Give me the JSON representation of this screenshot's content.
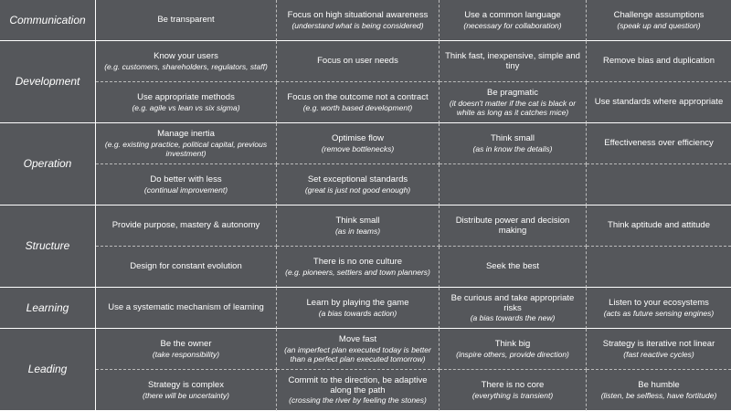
{
  "groups": [
    {
      "label": "Communication",
      "rows": [
        [
          {
            "main": "Be transparent"
          },
          {
            "main": "Focus on high situational awareness",
            "sub": "(understand what is being considered)"
          },
          {
            "main": "Use a common language",
            "sub": "(necessary for collaboration)"
          },
          {
            "main": "Challenge assumptions",
            "sub": "(speak up and question)"
          }
        ]
      ]
    },
    {
      "label": "Development",
      "rows": [
        [
          {
            "main": "Know your users",
            "sub": "(e.g. customers, shareholders, regulators, staff)"
          },
          {
            "main": "Focus on user needs"
          },
          {
            "main": "Think fast, inexpensive, simple and tiny"
          },
          {
            "main": "Remove bias and duplication"
          }
        ],
        [
          {
            "main": "Use appropriate methods",
            "sub": "(e.g. agile vs lean vs six sigma)"
          },
          {
            "main": "Focus on the outcome not a contract",
            "sub": "(e.g. worth based development)"
          },
          {
            "main": "Be pragmatic",
            "sub": "(it doesn't matter if the cat is black or white as long as it catches mice)"
          },
          {
            "main": "Use standards where appropriate"
          }
        ]
      ]
    },
    {
      "label": "Operation",
      "rows": [
        [
          {
            "main": "Manage inertia",
            "sub": "(e.g. existing practice, political capital, previous investment)"
          },
          {
            "main": "Optimise flow",
            "sub": "(remove bottlenecks)"
          },
          {
            "main": "Think small",
            "sub": "(as in know the details)"
          },
          {
            "main": "Effectiveness over efficiency"
          }
        ],
        [
          {
            "main": "Do better with less",
            "sub": "(continual improvement)"
          },
          {
            "main": "Set exceptional standards",
            "sub": "(great is just not good enough)"
          },
          null,
          null
        ]
      ]
    },
    {
      "label": "Structure",
      "rows": [
        [
          {
            "main": "Provide purpose, mastery & autonomy"
          },
          {
            "main": "Think small",
            "sub": "(as in teams)"
          },
          {
            "main": "Distribute power and decision making"
          },
          {
            "main": "Think aptitude and attitude"
          }
        ],
        [
          {
            "main": "Design for constant evolution"
          },
          {
            "main": "There is no one culture",
            "sub": "(e.g. pioneers, settlers and town planners)"
          },
          {
            "main": "Seek the best"
          },
          null
        ]
      ]
    },
    {
      "label": "Learning",
      "rows": [
        [
          {
            "main": "Use a systematic mechanism of learning"
          },
          {
            "main": "Learn by playing the game",
            "sub": "(a bias towards action)"
          },
          {
            "main": "Be curious and take appropriate risks",
            "sub": "(a bias towards the new)"
          },
          {
            "main": "Listen to your ecosystems",
            "sub": "(acts as future sensing engines)"
          }
        ]
      ]
    },
    {
      "label": "Leading",
      "rows": [
        [
          {
            "main": "Be the owner",
            "sub": "(take responsibility)"
          },
          {
            "main": "Move fast",
            "sub": "(an imperfect plan executed today is better than a perfect plan executed tomorrow)"
          },
          {
            "main": "Think big",
            "sub": "(inspire others, provide direction)"
          },
          {
            "main": "Strategy is iterative not linear",
            "sub": "(fast reactive cycles)"
          }
        ],
        [
          {
            "main": "Strategy is complex",
            "sub": "(there will be uncertainty)"
          },
          {
            "main": "Commit to the direction, be adaptive along the path",
            "sub": "(crossing the river by feeling the stones)"
          },
          {
            "main": "There is no core",
            "sub": "(everything is transient)"
          },
          {
            "main": "Be humble",
            "sub": "(listen, be selfless, have fortitude)"
          }
        ]
      ]
    }
  ]
}
